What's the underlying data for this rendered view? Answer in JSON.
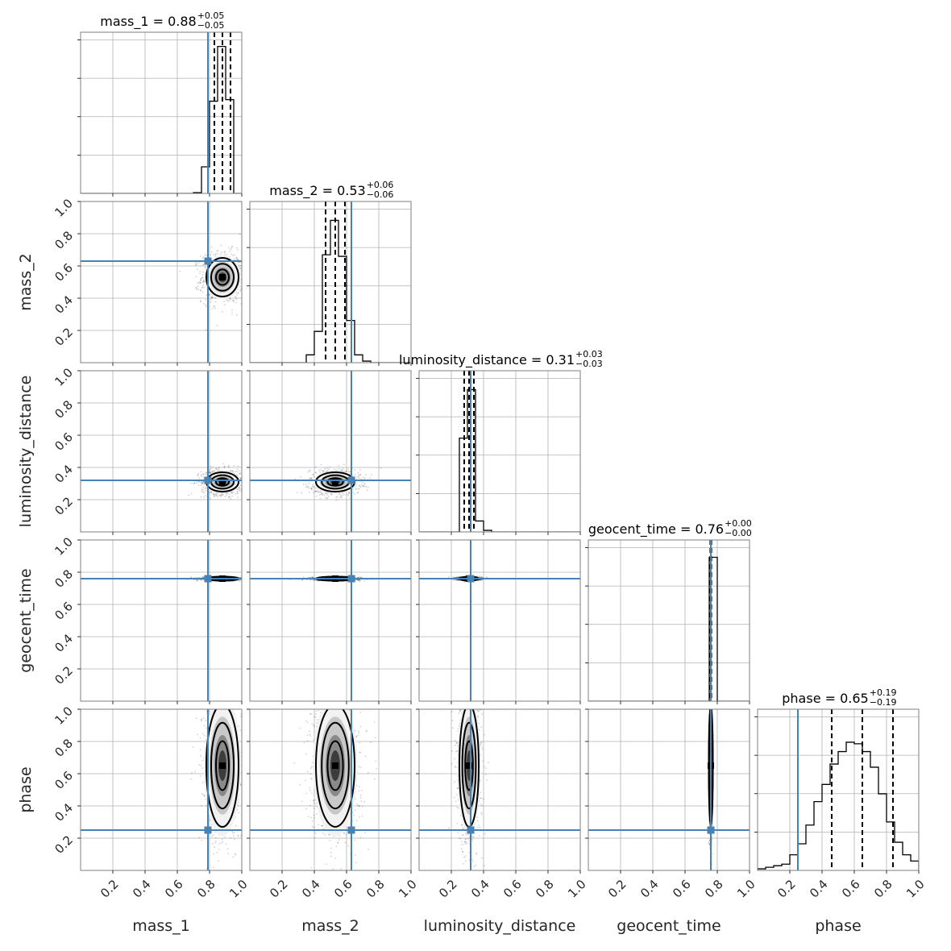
{
  "chart_data": {
    "type": "corner",
    "parameters": [
      "mass_1",
      "mass_2",
      "luminosity_distance",
      "geocent_time",
      "phase"
    ],
    "axis_range": [
      0,
      1
    ],
    "ticks": [
      0.2,
      0.4,
      0.6,
      0.8,
      1.0
    ],
    "tick_labels": [
      "0.2",
      "0.4",
      "0.6",
      "0.8",
      "1.0"
    ],
    "titles": [
      {
        "label": "mass_1 = 0.88",
        "plus": "+0.05",
        "minus": "−0.05"
      },
      {
        "label": "mass_2 = 0.53",
        "plus": "+0.06",
        "minus": "−0.06"
      },
      {
        "label": "luminosity_distance = 0.31",
        "plus": "+0.03",
        "minus": "−0.03"
      },
      {
        "label": "geocent_time = 0.76",
        "plus": "+0.00",
        "minus": "−0.00"
      },
      {
        "label": "phase = 0.65",
        "plus": "+0.19",
        "minus": "−0.19"
      }
    ],
    "medians": [
      0.88,
      0.53,
      0.31,
      0.76,
      0.65
    ],
    "sigmas": [
      0.05,
      0.06,
      0.03,
      0.004,
      0.19
    ],
    "quantiles": [
      [
        0.83,
        0.88,
        0.93
      ],
      [
        0.47,
        0.53,
        0.59
      ],
      [
        0.28,
        0.31,
        0.34
      ],
      [
        0.757,
        0.76,
        0.763
      ],
      [
        0.46,
        0.65,
        0.84
      ]
    ],
    "truths": [
      0.79,
      0.63,
      0.32,
      0.76,
      0.25
    ],
    "histograms": [
      {
        "edges": [
          0.0,
          0.05,
          0.1,
          0.15,
          0.2,
          0.25,
          0.3,
          0.35,
          0.4,
          0.45,
          0.5,
          0.55,
          0.6,
          0.65,
          0.7,
          0.75,
          0.8,
          0.85,
          0.9,
          0.95,
          1.0
        ],
        "counts": [
          0,
          0,
          0,
          0,
          0,
          0,
          0,
          0,
          0,
          0,
          0,
          0,
          0,
          0,
          0.005,
          0.17,
          0.59,
          0.94,
          0.6,
          0
        ]
      },
      {
        "edges": [
          0.0,
          0.05,
          0.1,
          0.15,
          0.2,
          0.25,
          0.3,
          0.35,
          0.4,
          0.45,
          0.5,
          0.55,
          0.6,
          0.65,
          0.7,
          0.75,
          0.8,
          0.85,
          0.9,
          0.95,
          1.0
        ],
        "counts": [
          0,
          0,
          0,
          0,
          0,
          0,
          0,
          0.05,
          0.2,
          0.69,
          0.91,
          0.68,
          0.27,
          0.05,
          0.01,
          0,
          0,
          0,
          0,
          0
        ]
      },
      {
        "edges": [
          0.0,
          0.05,
          0.1,
          0.15,
          0.2,
          0.25,
          0.3,
          0.35,
          0.4,
          0.45,
          0.5,
          0.55,
          0.6,
          0.65,
          0.7,
          0.75,
          0.8,
          0.85,
          0.9,
          0.95,
          1.0
        ],
        "counts": [
          0,
          0,
          0,
          0,
          0,
          0.6,
          0.91,
          0.07,
          0.01,
          0,
          0,
          0,
          0,
          0,
          0,
          0,
          0,
          0,
          0,
          0
        ]
      },
      {
        "edges": [
          0.0,
          0.05,
          0.1,
          0.15,
          0.2,
          0.25,
          0.3,
          0.35,
          0.4,
          0.45,
          0.5,
          0.55,
          0.6,
          0.65,
          0.7,
          0.75,
          0.8,
          0.85,
          0.9,
          0.95,
          1.0
        ],
        "counts": [
          0,
          0,
          0,
          0,
          0,
          0,
          0,
          0,
          0,
          0,
          0,
          0,
          0,
          0,
          0,
          0.92,
          0,
          0,
          0,
          0
        ]
      },
      {
        "edges": [
          0.0,
          0.05,
          0.1,
          0.15,
          0.2,
          0.25,
          0.3,
          0.35,
          0.4,
          0.45,
          0.5,
          0.55,
          0.6,
          0.65,
          0.7,
          0.75,
          0.8,
          0.85,
          0.9,
          0.95,
          1.0
        ],
        "counts": [
          0.01,
          0.02,
          0.03,
          0.04,
          0.1,
          0.17,
          0.29,
          0.44,
          0.55,
          0.68,
          0.76,
          0.82,
          0.81,
          0.76,
          0.66,
          0.49,
          0.31,
          0.18,
          0.1,
          0.06
        ]
      }
    ],
    "grid": true,
    "colors": {
      "truth": "#4682b4",
      "histogram": "#000000",
      "frame": "#7f7f7f",
      "grid": "#b0b0b0"
    }
  }
}
